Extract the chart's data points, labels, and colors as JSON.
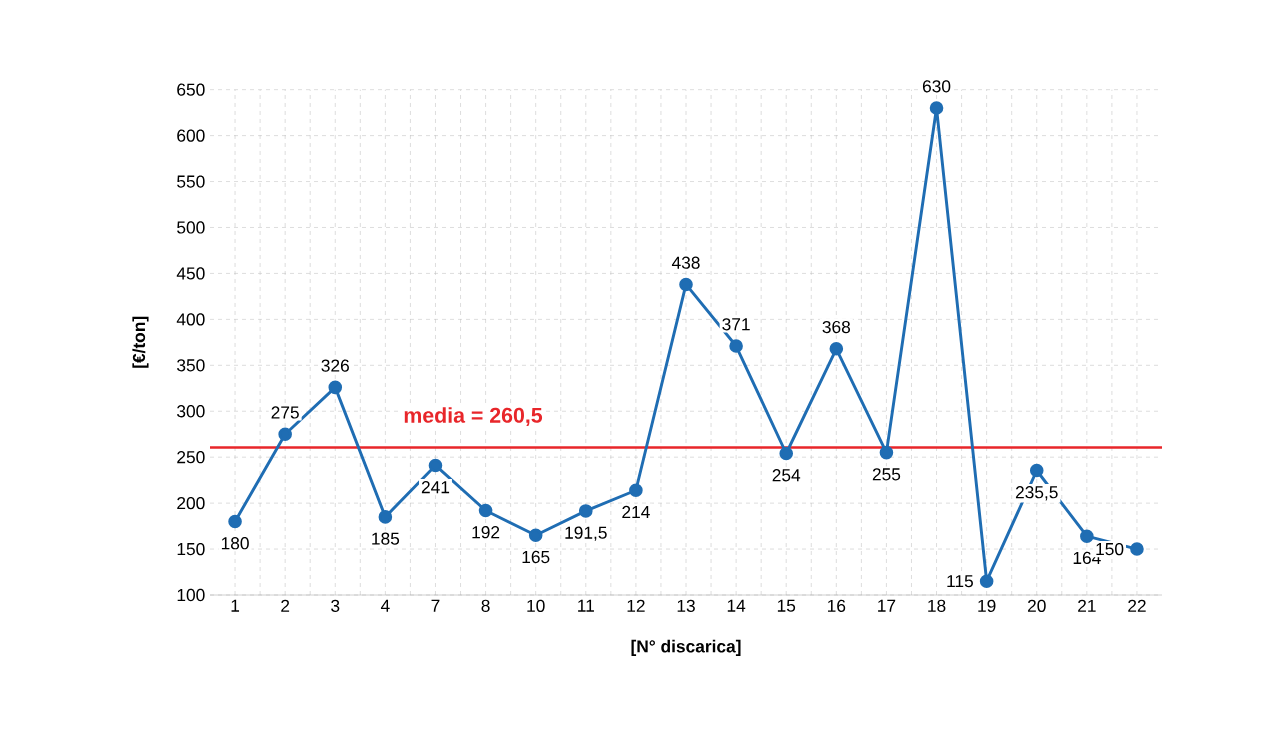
{
  "chart_data": {
    "type": "line",
    "xlabel": "[N° discarica]",
    "ylabel": "[€/ton]",
    "categories": [
      "1",
      "2",
      "3",
      "4",
      "7",
      "8",
      "10",
      "11",
      "12",
      "13",
      "14",
      "15",
      "16",
      "17",
      "18",
      "19",
      "20",
      "21",
      "22"
    ],
    "series": [
      {
        "color": "#1f6db3",
        "values": [
          180,
          275,
          326,
          185,
          241,
          192,
          165,
          191.5,
          214,
          438,
          371,
          254,
          368,
          255,
          630,
          115,
          235.5,
          164,
          150
        ],
        "value_labels": [
          "180",
          "275",
          "326",
          "185",
          "241",
          "192",
          "165",
          "191,5",
          "214",
          "438",
          "371",
          "254",
          "368",
          "255",
          "630",
          "115",
          "235,5",
          "164",
          "150"
        ]
      }
    ],
    "ylim": [
      100,
      650
    ],
    "yticks": [
      100,
      150,
      200,
      250,
      300,
      350,
      400,
      450,
      500,
      550,
      600,
      650
    ],
    "ref_lines": [
      {
        "axis": "y",
        "value": 260.5,
        "label": "media = 260,5",
        "color": "#e8262a"
      }
    ],
    "grid": true,
    "marker": "circle",
    "line_style": "solid"
  }
}
